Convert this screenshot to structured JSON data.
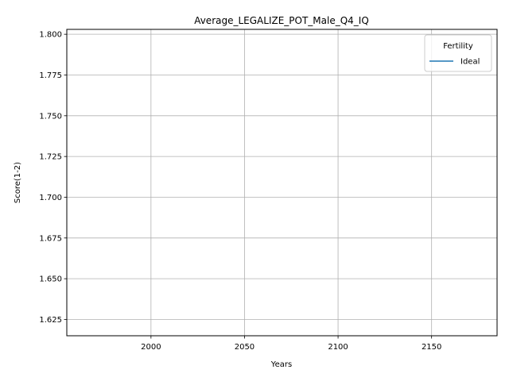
{
  "chart_data": {
    "type": "line",
    "title": "Average_LEGALIZE_POT_Male_Q4_IQ",
    "xlabel": "Years",
    "ylabel": "Score(1-2)",
    "xlim": [
      1955,
      2185
    ],
    "ylim": [
      1.615,
      1.803
    ],
    "x_ticks": [
      2000,
      2050,
      2100,
      2150
    ],
    "y_ticks": [
      1.625,
      1.65,
      1.675,
      1.7,
      1.725,
      1.75,
      1.775,
      1.8
    ],
    "grid": true,
    "legend": {
      "title": "Fertility",
      "placement": "top-right"
    },
    "series": [
      {
        "name": "Ideal",
        "color": "#1f77b4",
        "x": [],
        "y": []
      }
    ]
  }
}
